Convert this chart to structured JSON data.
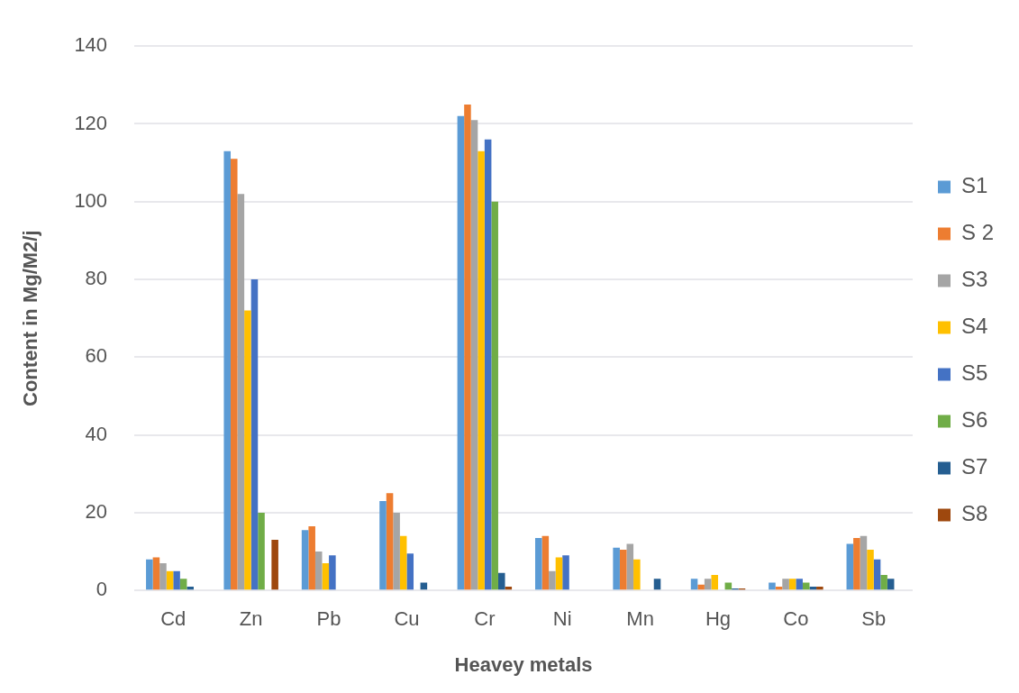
{
  "chart_data": {
    "type": "bar",
    "xlabel": "Heavey metals",
    "ylabel": "Content in Mg/M2/j",
    "categories": [
      "Cd",
      "Zn",
      "Pb",
      "Cu",
      "Cr",
      "Ni",
      "Mn",
      "Hg",
      "Co",
      "Sb"
    ],
    "series": [
      {
        "name": "S1",
        "color": "#5b9bd5",
        "values": [
          8,
          113,
          15.5,
          23,
          122,
          13.5,
          11,
          3,
          2,
          12
        ]
      },
      {
        "name": "S 2",
        "color": "#ed7d31",
        "values": [
          8.5,
          111,
          16.5,
          25,
          125,
          14,
          10.5,
          1.5,
          1,
          13.5
        ]
      },
      {
        "name": "S3",
        "color": "#a5a5a5",
        "values": [
          7,
          102,
          10,
          20,
          121,
          5,
          12,
          3,
          3,
          14
        ]
      },
      {
        "name": "S4",
        "color": "#ffc000",
        "values": [
          5,
          72,
          7,
          14,
          113,
          8.5,
          8,
          4,
          3,
          10.5
        ]
      },
      {
        "name": "S5",
        "color": "#4472c4",
        "values": [
          5,
          80,
          9,
          9.5,
          116,
          9,
          0,
          0,
          3,
          8
        ]
      },
      {
        "name": "S6",
        "color": "#70ad47",
        "values": [
          3,
          20,
          0,
          0,
          100,
          0,
          0,
          2,
          2,
          4
        ]
      },
      {
        "name": "S7",
        "color": "#255e91",
        "values": [
          1,
          0,
          0,
          2,
          4.5,
          0,
          3,
          0.5,
          1,
          3
        ]
      },
      {
        "name": "S8",
        "color": "#9e480e",
        "values": [
          0,
          13,
          0,
          0,
          1,
          0,
          0,
          0.5,
          1,
          0
        ]
      }
    ],
    "ylim": [
      0,
      140
    ],
    "yticks": [
      0,
      20,
      40,
      60,
      80,
      100,
      120,
      140
    ],
    "grid": "y",
    "legend": "right"
  }
}
